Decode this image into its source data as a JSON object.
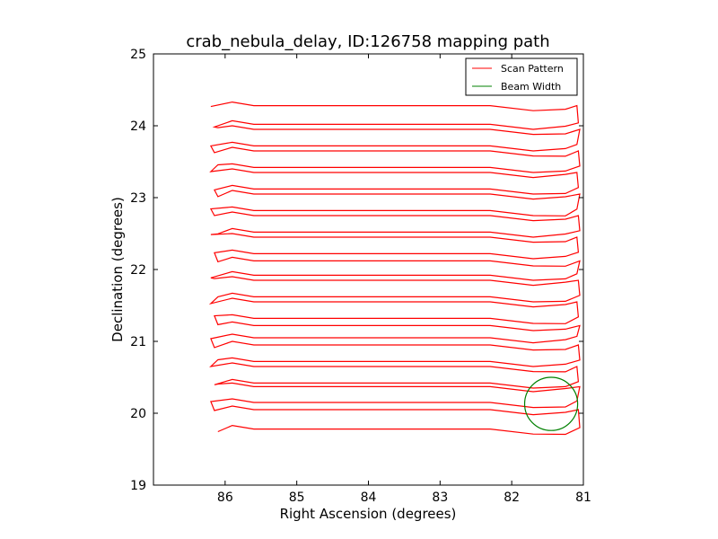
{
  "chart_data": {
    "type": "line",
    "title": "crab_nebula_delay, ID:126758 mapping path",
    "xlabel": "Right Ascension (degrees)",
    "ylabel": "Declination (degrees)",
    "xlim": [
      87,
      81
    ],
    "ylim": [
      19,
      25
    ],
    "x_inverted": true,
    "xticks": [
      86,
      85,
      84,
      83,
      82,
      81
    ],
    "xtick_labels": [
      "86",
      "85",
      "84",
      "83",
      "82",
      "81"
    ],
    "yticks": [
      19,
      20,
      21,
      22,
      23,
      24,
      25
    ],
    "ytick_labels": [
      "19",
      "20",
      "21",
      "22",
      "23",
      "24",
      "25"
    ],
    "legend_position": "top-right",
    "series": [
      {
        "name": "Scan Pattern",
        "color": "#ff0000",
        "kind": "raster_scan",
        "scan_lines_dec": [
          19.78,
          20.05,
          20.15,
          20.37,
          20.42,
          20.65,
          20.72,
          20.95,
          21.05,
          21.22,
          21.32,
          21.55,
          21.62,
          21.85,
          21.92,
          22.12,
          22.22,
          22.45,
          22.52,
          22.75,
          22.82,
          23.05,
          23.12,
          23.35,
          23.42,
          23.65,
          23.72,
          23.95,
          24.02,
          24.28
        ],
        "ra_east_end": 86.15,
        "ra_west_end": 81.05,
        "flat_segment_ra": [
          85.6,
          82.3
        ]
      },
      {
        "name": "Beam Width",
        "color": "#008000",
        "kind": "circle",
        "center": [
          81.45,
          20.13
        ],
        "radius": 0.37
      }
    ]
  }
}
